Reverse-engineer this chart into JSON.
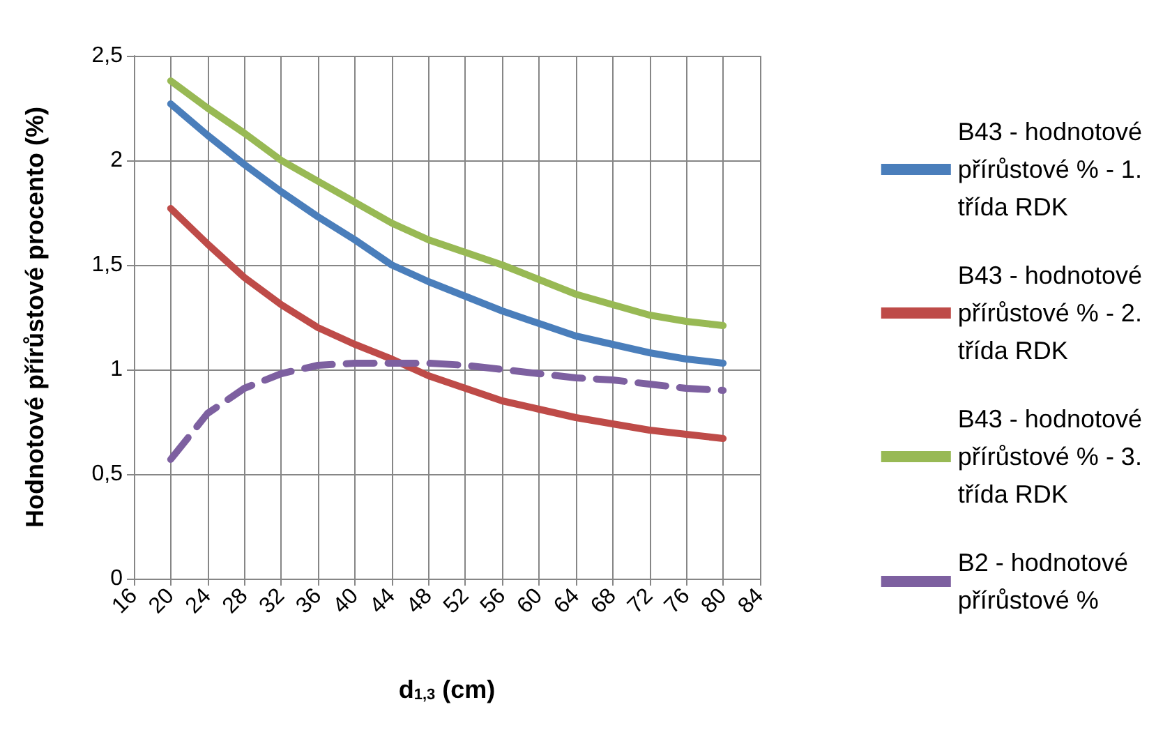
{
  "chart_data": {
    "type": "line",
    "xlabel": "d$_{1,3}$ (cm)",
    "ylabel": "Hodnotové přírůstové procento (%)",
    "x": [
      20,
      24,
      28,
      32,
      36,
      40,
      44,
      48,
      52,
      56,
      60,
      64,
      68,
      72,
      76,
      80
    ],
    "xlim": [
      16,
      84
    ],
    "xticks": [
      16,
      20,
      24,
      28,
      32,
      36,
      40,
      44,
      48,
      52,
      56,
      60,
      64,
      68,
      72,
      76,
      80,
      84
    ],
    "ylim": [
      0,
      2.5
    ],
    "yticks": [
      {
        "value": 0,
        "label": "0"
      },
      {
        "value": 0.5,
        "label": "0,5"
      },
      {
        "value": 1,
        "label": "1"
      },
      {
        "value": 1.5,
        "label": "1,5"
      },
      {
        "value": 2,
        "label": "2"
      },
      {
        "value": 2.5,
        "label": "2,5"
      }
    ],
    "grid": true,
    "legend": "right",
    "marker": "none",
    "series": [
      {
        "name": "B43 - hodnotové přírůstové % - 1. třída RDK",
        "color": "#4a7ebb",
        "line_style": "solid",
        "values": [
          2.27,
          2.12,
          1.98,
          1.85,
          1.73,
          1.62,
          1.5,
          1.42,
          1.35,
          1.28,
          1.22,
          1.16,
          1.12,
          1.08,
          1.05,
          1.03
        ]
      },
      {
        "name": "B43 - hodnotové přírůstové % - 2. třída RDK",
        "color": "#be4b48",
        "line_style": "solid",
        "values": [
          1.77,
          1.6,
          1.44,
          1.31,
          1.2,
          1.12,
          1.05,
          0.97,
          0.91,
          0.85,
          0.81,
          0.77,
          0.74,
          0.71,
          0.69,
          0.67
        ]
      },
      {
        "name": "B43 - hodnotové přírůstové % - 3. třída RDK",
        "color": "#98b954",
        "line_style": "solid",
        "values": [
          2.38,
          2.25,
          2.13,
          2.0,
          1.9,
          1.8,
          1.7,
          1.62,
          1.56,
          1.5,
          1.43,
          1.36,
          1.31,
          1.26,
          1.23,
          1.21
        ]
      },
      {
        "name": "B2 - hodnotové přírůstové %",
        "color": "#7d60a0",
        "line_style": "dashed",
        "values": [
          0.57,
          0.79,
          0.91,
          0.98,
          1.02,
          1.03,
          1.03,
          1.03,
          1.02,
          1.0,
          0.98,
          0.96,
          0.95,
          0.93,
          0.91,
          0.9
        ]
      }
    ]
  }
}
